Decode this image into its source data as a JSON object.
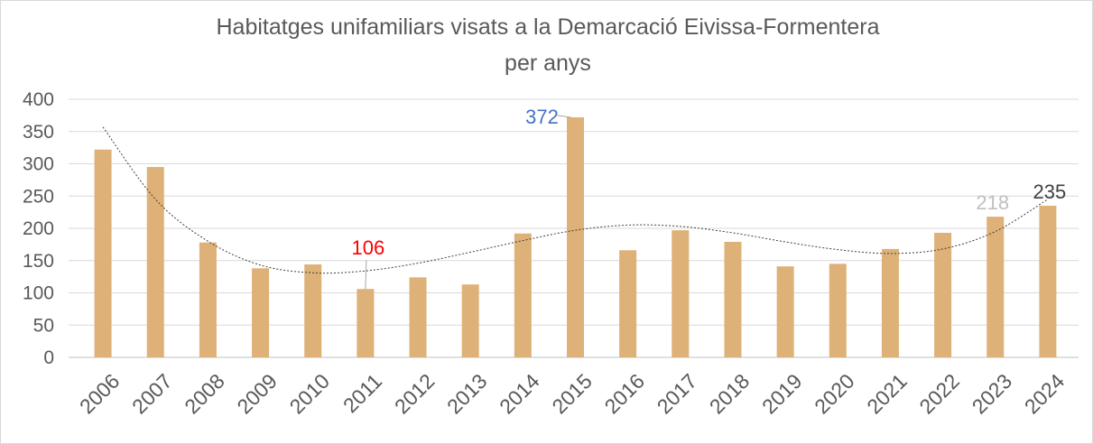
{
  "chart_data": {
    "type": "bar",
    "title": "Habitatges unifamiliars visats a la Demarcació Eivissa-Formentera",
    "subtitle": "per anys",
    "xlabel": "",
    "ylabel": "",
    "ylim": [
      0,
      400
    ],
    "yticks": [
      "0",
      "50",
      "100",
      "150",
      "200",
      "250",
      "300",
      "350",
      "400"
    ],
    "grid": true,
    "legend": "none",
    "categories": [
      "2006",
      "2007",
      "2008",
      "2009",
      "2010",
      "2011",
      "2012",
      "2013",
      "2014",
      "2015",
      "2016",
      "2017",
      "2018",
      "2019",
      "2020",
      "2021",
      "2022",
      "2023",
      "2024"
    ],
    "values": [
      322,
      295,
      178,
      138,
      144,
      106,
      124,
      113,
      192,
      372,
      166,
      197,
      179,
      141,
      145,
      168,
      193,
      218,
      235
    ],
    "trendline": {
      "type": "polynomial",
      "style": "dotted",
      "values": [
        357,
        245,
        180,
        143,
        131,
        134,
        146,
        163,
        181,
        197,
        205,
        203,
        193,
        179,
        167,
        161,
        168,
        195,
        245
      ]
    },
    "annotations": [
      {
        "category": "2015",
        "text": "372",
        "color": "#4472C4"
      },
      {
        "category": "2011",
        "text": "106",
        "color": "#FF0000"
      },
      {
        "category": "2023",
        "text": "218",
        "color": "#BFBFBF"
      },
      {
        "category": "2024",
        "text": "235",
        "color": "#404040"
      }
    ],
    "colors": {
      "bar": "#DDB177",
      "grid": "#D9D9D9",
      "text": "#595959"
    }
  }
}
